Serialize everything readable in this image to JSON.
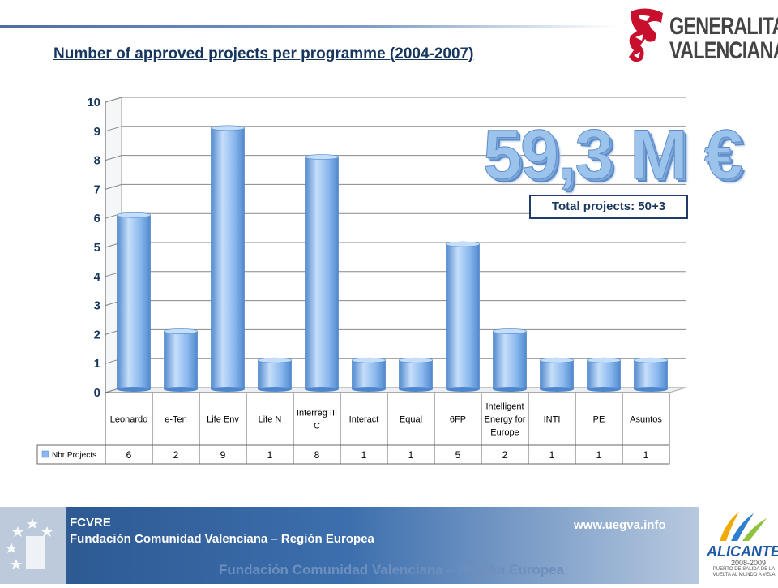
{
  "page": {
    "title": "Number of approved projects per programme  (2004-2007)",
    "big_amount": "59,3 M €",
    "total_box": "Total projects: 50+3"
  },
  "logos": {
    "generalitat_line1": "GENERALITAT",
    "generalitat_line2": "VALENCIANA",
    "alicante_name": "ALICANTE",
    "alicante_years": "2008-2009",
    "alicante_sub": "PUERTO DE SALIDA DE LA VUELTA AL MUNDO A VELA"
  },
  "footer": {
    "org_short": "FCVRE",
    "org_full": "Fundación Comunidad Valenciana – Región Europea",
    "url": "www.uegva.info",
    "ghost_text": "Fundación Comunidad Valenciana – Región Europea"
  },
  "colors": {
    "bar_fill": "#8ab8ee",
    "bar_light": "#c5defa",
    "bar_dark": "#4f87cc",
    "title_color": "#17365d"
  },
  "chart_data": {
    "type": "bar",
    "categories": [
      "Leonardo",
      "e-Ten",
      "Life Env",
      "Life N",
      "Interreg III C",
      "Interact",
      "Equal",
      "6FP",
      "Intelligent Energy for Europe",
      "INTI",
      "PE",
      "Asuntos"
    ],
    "category_lines": [
      [
        "Leonardo"
      ],
      [
        "e-Ten"
      ],
      [
        "Life Env"
      ],
      [
        "Life N"
      ],
      [
        "Interreg III",
        "C"
      ],
      [
        "Interact"
      ],
      [
        "Equal"
      ],
      [
        "6FP"
      ],
      [
        "Intelligent",
        "Energy for",
        "Europe"
      ],
      [
        "INTI"
      ],
      [
        "PE"
      ],
      [
        "Asuntos"
      ]
    ],
    "series": [
      {
        "name": "Nbr Projects",
        "values": [
          6,
          2,
          9,
          1,
          8,
          1,
          1,
          5,
          2,
          1,
          1,
          1
        ]
      }
    ],
    "yticks": [
      "0",
      "1",
      "2",
      "3",
      "4",
      "5",
      "6",
      "7",
      "8",
      "9",
      "10"
    ],
    "ylim": [
      0,
      10
    ],
    "grid": true,
    "legend": "data-table"
  }
}
